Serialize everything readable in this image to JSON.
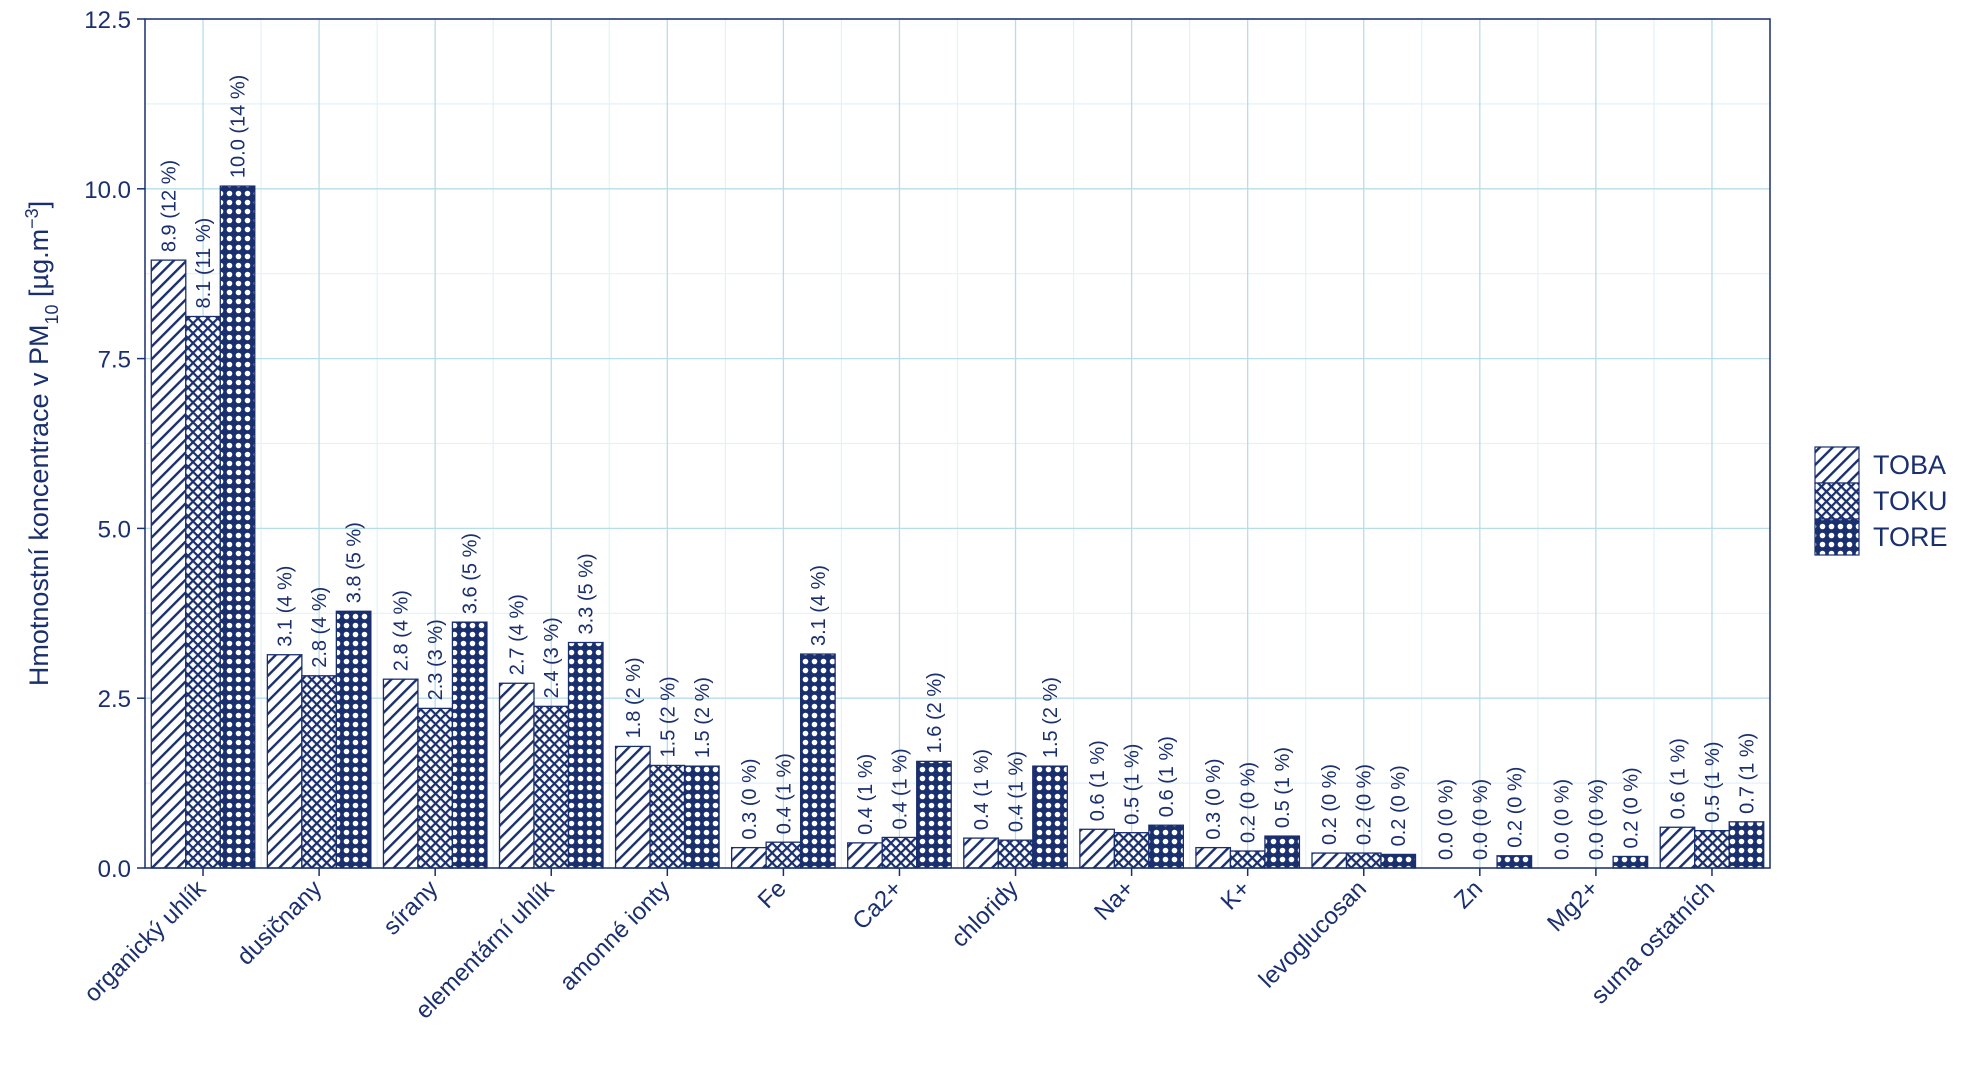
{
  "chart_data": {
    "type": "bar",
    "ylabel": {
      "prefix": "Hmotnostní koncentrace v  PM",
      "subscript": "10",
      "unit_open": " [µg.m",
      "superscript": "−3",
      "unit_close": "]"
    },
    "ylim": [
      0,
      12.5
    ],
    "yticks": [
      0.0,
      2.5,
      5.0,
      7.5,
      10.0,
      12.5
    ],
    "ytick_labels": [
      "0.0",
      "2.5",
      "5.0",
      "7.5",
      "10.0",
      "12.5"
    ],
    "grid": true,
    "legend_position": "right",
    "categories": [
      "organický uhlík",
      "dusičnany",
      "sírany",
      "elementární uhlík",
      "amonné ionty",
      "Fe",
      "Ca2+",
      "chloridy",
      "Na+",
      "K+",
      "levoglucosan",
      "Zn",
      "Mg2+",
      "suma ostatních"
    ],
    "series": [
      {
        "name": "TOBA",
        "pattern": "hatch",
        "values": [
          8.95,
          3.14,
          2.78,
          2.72,
          1.79,
          0.3,
          0.37,
          0.44,
          0.57,
          0.3,
          0.22,
          0.0,
          0.0,
          0.6
        ],
        "labels": [
          "8.9 (12 %)",
          "3.1 (4 %)",
          "2.8 (4 %)",
          "2.7 (4 %)",
          "1.8 (2 %)",
          "0.3 (0 %)",
          "0.4 (1 %)",
          "0.4 (1 %)",
          "0.6 (1 %)",
          "0.3 (0 %)",
          "0.2 (0 %)",
          "0.0 (0 %)",
          "0.0 (0 %)",
          "0.6 (1 %)"
        ]
      },
      {
        "name": "TOKU",
        "pattern": "crosshatch",
        "values": [
          8.12,
          2.83,
          2.35,
          2.38,
          1.51,
          0.38,
          0.45,
          0.41,
          0.52,
          0.25,
          0.22,
          0.0,
          0.0,
          0.55
        ],
        "labels": [
          "8.1 (11 %)",
          "2.8 (4 %)",
          "2.3 (3 %)",
          "2.4 (3 %)",
          "1.5 (2 %)",
          "0.4 (1 %)",
          "0.4 (1 %)",
          "0.4 (1 %)",
          "0.5 (1 %)",
          "0.2 (0 %)",
          "0.2 (0 %)",
          "0.0 (0 %)",
          "0.0 (0 %)",
          "0.5 (1 %)"
        ]
      },
      {
        "name": "TORE",
        "pattern": "dots",
        "values": [
          10.04,
          3.78,
          3.62,
          3.32,
          1.5,
          3.15,
          1.57,
          1.5,
          0.63,
          0.47,
          0.2,
          0.18,
          0.17,
          0.68
        ],
        "labels": [
          "10.0 (14 %)",
          "3.8 (5 %)",
          "3.6 (5 %)",
          "3.3 (5 %)",
          "1.5 (2 %)",
          "3.1 (4 %)",
          "1.6 (2 %)",
          "1.5 (2 %)",
          "0.6 (1 %)",
          "0.5 (1 %)",
          "0.2 (0 %)",
          "0.2 (0 %)",
          "0.2 (0 %)",
          "0.7 (1 %)"
        ]
      }
    ],
    "colors": {
      "ink": "#1a2f6e",
      "grid_major": "#b7dde8",
      "grid_minor": "#e3f2f7",
      "background": "#ffffff"
    }
  }
}
